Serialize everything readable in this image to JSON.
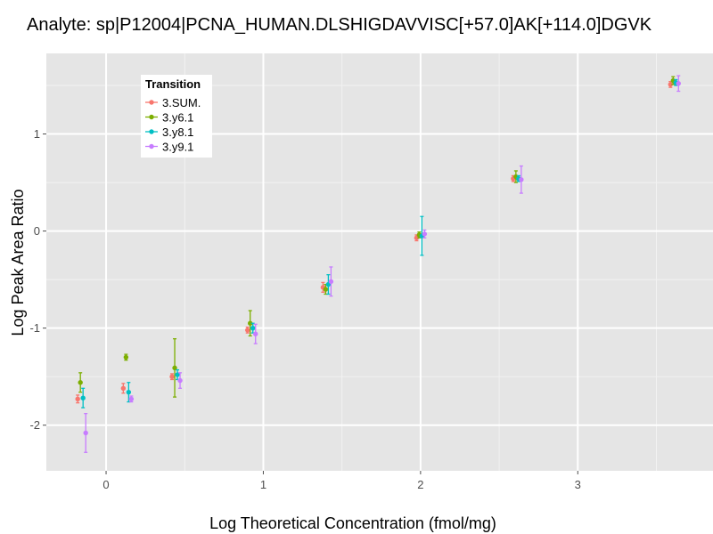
{
  "chart_data": {
    "type": "scatter",
    "title": "Analyte: sp|P12004|PCNA_HUMAN.DLSHIGDAVVISC[+57.0]AK[+114.0]DGVK",
    "xlabel": "Log Theoretical Concentration (fmol/mg)",
    "ylabel": "Log Peak Area Ratio",
    "xlim": [
      -0.38,
      3.86
    ],
    "ylim": [
      -2.47,
      1.83
    ],
    "x_ticks": [
      0,
      1,
      2,
      3
    ],
    "y_ticks": [
      -2,
      -1,
      0,
      1
    ],
    "x_tick_labels": [
      "0",
      "1",
      "2",
      "3"
    ],
    "y_tick_labels": [
      "-2",
      "-1",
      "0",
      "1"
    ],
    "grid": true,
    "error_bars": true,
    "legend": {
      "title": "Transition",
      "position": "top-left"
    },
    "x": [
      -0.155,
      0.135,
      0.445,
      0.925,
      1.405,
      2.0,
      2.615,
      3.615
    ],
    "series": [
      {
        "name": "3.SUM.",
        "color": "#f8766d",
        "y": [
          -1.73,
          -1.62,
          -1.5,
          -1.02,
          -0.58,
          -0.07,
          0.54,
          1.51
        ],
        "err": [
          0.04,
          0.05,
          0.03,
          0.03,
          0.05,
          0.03,
          0.03,
          0.03
        ]
      },
      {
        "name": "3.y6.1",
        "color": "#7cae00",
        "y": [
          -1.56,
          -1.3,
          -1.41,
          -0.95,
          -0.6,
          -0.04,
          0.56,
          1.55
        ],
        "err": [
          0.1,
          0.03,
          0.3,
          0.13,
          0.05,
          0.03,
          0.06,
          0.04
        ]
      },
      {
        "name": "3.y8.1",
        "color": "#00bfc4",
        "y": [
          -1.72,
          -1.66,
          -1.48,
          -1.0,
          -0.55,
          -0.05,
          0.54,
          1.53
        ],
        "err": [
          0.1,
          0.1,
          0.05,
          0.05,
          0.1,
          0.2,
          0.03,
          0.03
        ]
      },
      {
        "name": "3.y9.1",
        "color": "#c77cff",
        "y": [
          -2.08,
          -1.73,
          -1.54,
          -1.06,
          -0.52,
          -0.03,
          0.53,
          1.52
        ],
        "err": [
          0.2,
          0.03,
          0.08,
          0.1,
          0.15,
          0.04,
          0.14,
          0.08
        ]
      }
    ]
  },
  "colors": {
    "panel": "#e5e5e5",
    "grid_major": "#ffffff",
    "grid_minor": "#f2f2f2"
  }
}
